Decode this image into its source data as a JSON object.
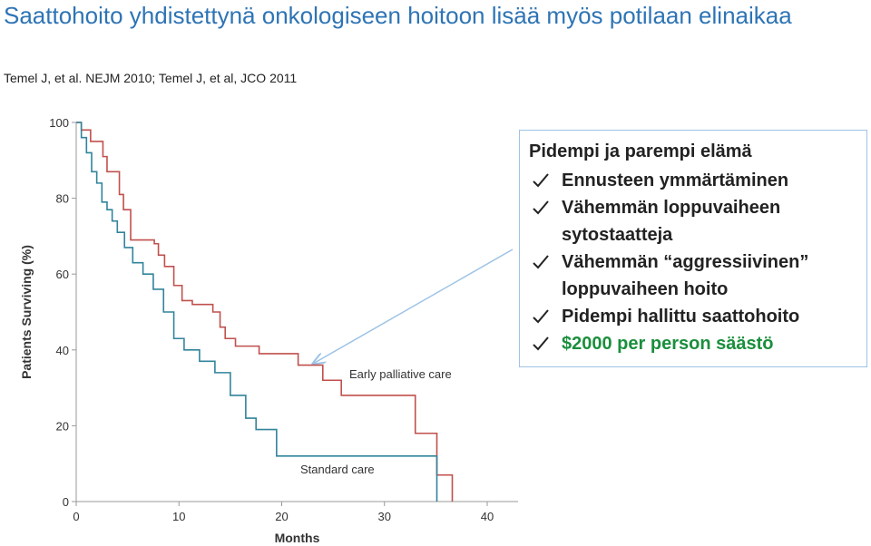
{
  "slide": {
    "title": "Saattohoito yhdistettynä onkologiseen hoitoon lisää myös potilaan elinaikaa",
    "citation": "Temel J, et al. NEJM 2010; Temel J, et al, JCO 2011"
  },
  "callout": {
    "heading": "Pidempi ja parempi elämä",
    "items": [
      "Ennusteen ymmärtäminen",
      "Vähemmän loppuvaiheen sytostaatteja",
      "Vähemmän “aggressiivinen” loppuvaiheen hoito",
      "Pidempi hallittu saattohoito",
      "$2000 per person säästö"
    ]
  },
  "chart_data": {
    "type": "step",
    "xlabel": "Months",
    "ylabel": "Patients Surviving (%)",
    "xlim": [
      0,
      43
    ],
    "ylim": [
      0,
      100
    ],
    "xticks": [
      0,
      10,
      20,
      30,
      40
    ],
    "yticks": [
      0,
      20,
      40,
      60,
      80,
      100
    ],
    "series": [
      {
        "name": "Early palliative care",
        "color": "#c0504d",
        "x": [
          0,
          0.5,
          1.4,
          2.6,
          3,
          4.2,
          4.6,
          5.3,
          7.6,
          8,
          8.6,
          9.5,
          10.3,
          11.3,
          13.3,
          14,
          14.5,
          15.5,
          17.8,
          21.6,
          24,
          25.8,
          33,
          35.1,
          36.6
        ],
        "values": [
          100,
          98,
          95,
          91,
          87,
          81,
          77,
          69,
          68,
          65,
          62,
          57,
          53,
          52,
          50,
          46,
          43,
          41,
          39,
          36,
          32,
          28,
          18,
          7,
          0
        ]
      },
      {
        "name": "Standard care",
        "color": "#31849b",
        "x": [
          0,
          0.5,
          1,
          1.5,
          2,
          2.5,
          3,
          3.5,
          4,
          4.7,
          5.5,
          6.5,
          7.5,
          8.5,
          9.5,
          10.5,
          12,
          13.5,
          15,
          16.5,
          17.5,
          19.5,
          35.1
        ],
        "values": [
          100,
          96,
          92,
          87,
          84,
          79,
          77,
          74,
          71,
          67,
          63,
          60,
          56,
          50,
          43,
          40,
          37,
          34,
          28,
          22,
          19,
          12,
          0
        ]
      }
    ]
  }
}
